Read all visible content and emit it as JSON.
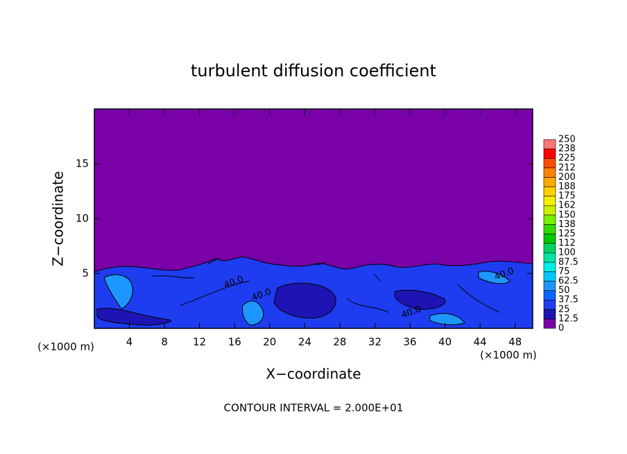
{
  "chart_data": {
    "type": "contour",
    "title": "turbulent diffusion coefficient",
    "x_label": "X−coordinate",
    "y_label": "Z−coordinate",
    "x_unit": "(×1000 m)",
    "x_unit_right": "(×1000 m)",
    "footer": "CONTOUR INTERVAL = 2.000E+01",
    "xlim": [
      0,
      50
    ],
    "ylim": [
      0,
      20
    ],
    "xticks": [
      4,
      8,
      12,
      16,
      20,
      24,
      28,
      32,
      36,
      40,
      44,
      48
    ],
    "yticks": [
      5,
      10,
      15
    ],
    "contour_labels": [
      "40.0",
      "40.0",
      "40.0",
      "40.0"
    ],
    "colorbar": {
      "levels": [
        0,
        12.5,
        25,
        37.5,
        50,
        62.5,
        75,
        87.5,
        100,
        {
          "value": 112.5,
          "label": "112"
        },
        125,
        {
          "value": 137.5,
          "label": "138"
        },
        150,
        {
          "value": 162.5,
          "label": "162"
        },
        175,
        {
          "value": 187.5,
          "label": "188"
        },
        200,
        {
          "value": 212.5,
          "label": "212"
        },
        225,
        {
          "value": 237.5,
          "label": "238"
        },
        250
      ],
      "colors": [
        "#7a00a8",
        "#1e14b4",
        "#1e3cf0",
        "#0a64ff",
        "#1e96ff",
        "#00c8ff",
        "#00f0e6",
        "#00e6a0",
        "#00d264",
        "#00c800",
        "#32dc00",
        "#78f000",
        "#c8f000",
        "#f0f000",
        "#ffd200",
        "#ffaa00",
        "#ff8200",
        "#ff4b00",
        "#ff0000",
        "#ff7878"
      ]
    }
  }
}
